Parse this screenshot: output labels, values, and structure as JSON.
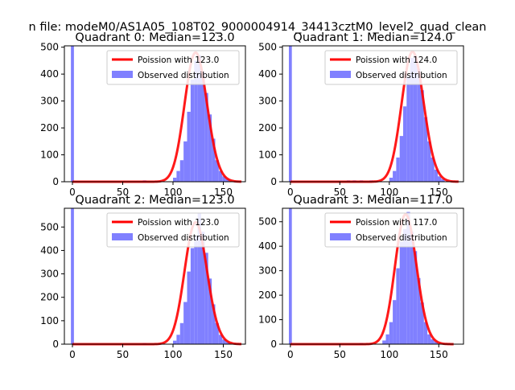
{
  "figure": {
    "suptitle": "n file: modeM0/AS1A05_108T02_9000004914_34413cztM0_level2_quad_clean"
  },
  "colors": {
    "poisson_line": "#ff0000",
    "histogram": "#8080ff",
    "axes": "#000000",
    "background": "#ffffff",
    "legend_border": "#cccccc"
  },
  "chart_data": [
    {
      "type": "bar",
      "title": "Quadrant 0: Median=123.0",
      "median": 123.0,
      "xlim": [
        -8,
        172
      ],
      "ylim": [
        0,
        505
      ],
      "xticks": [
        0,
        50,
        100,
        150
      ],
      "yticks": [
        0,
        100,
        200,
        300,
        400,
        500
      ],
      "legend": {
        "location": "upper right",
        "line_label": "Poission with 123.0",
        "hist_label": "Observed distribution"
      },
      "bin_width": 3.5,
      "zero_spike": {
        "x": 0,
        "value": 505
      },
      "histogram": [
        {
          "x": 70,
          "value": 5
        },
        {
          "x": 100,
          "value": 15
        },
        {
          "x": 103.5,
          "value": 40
        },
        {
          "x": 107,
          "value": 80
        },
        {
          "x": 110.5,
          "value": 150
        },
        {
          "x": 114,
          "value": 260
        },
        {
          "x": 117.5,
          "value": 380
        },
        {
          "x": 121,
          "value": 450
        },
        {
          "x": 124.5,
          "value": 470
        },
        {
          "x": 128,
          "value": 410
        },
        {
          "x": 131.5,
          "value": 330
        },
        {
          "x": 135,
          "value": 250
        },
        {
          "x": 138.5,
          "value": 160
        },
        {
          "x": 142,
          "value": 80
        },
        {
          "x": 145.5,
          "value": 40
        },
        {
          "x": 149,
          "value": 20
        },
        {
          "x": 152.5,
          "value": 10
        }
      ],
      "poisson": {
        "mu": 123.0,
        "x_range": [
          0,
          168
        ],
        "peak": 480
      }
    },
    {
      "type": "bar",
      "title": "Quadrant 1: Median=124.0",
      "median": 124.0,
      "xlim": [
        -8,
        175
      ],
      "ylim": [
        0,
        505
      ],
      "xticks": [
        0,
        50,
        100,
        150
      ],
      "yticks": [
        0,
        100,
        200,
        300,
        400,
        500
      ],
      "legend": {
        "location": "upper right",
        "line_label": "Poission with 124.0",
        "hist_label": "Observed distribution"
      },
      "bin_width": 3.5,
      "zero_spike": {
        "x": 0,
        "value": 505
      },
      "histogram": [
        {
          "x": 57,
          "value": 5
        },
        {
          "x": 63,
          "value": 5
        },
        {
          "x": 70,
          "value": 5
        },
        {
          "x": 80,
          "value": 5
        },
        {
          "x": 100,
          "value": 15
        },
        {
          "x": 103.5,
          "value": 40
        },
        {
          "x": 107,
          "value": 90
        },
        {
          "x": 110.5,
          "value": 170
        },
        {
          "x": 114,
          "value": 280
        },
        {
          "x": 117.5,
          "value": 390
        },
        {
          "x": 121,
          "value": 460
        },
        {
          "x": 124.5,
          "value": 470
        },
        {
          "x": 128,
          "value": 420
        },
        {
          "x": 131.5,
          "value": 340
        },
        {
          "x": 135,
          "value": 240
        },
        {
          "x": 138.5,
          "value": 150
        },
        {
          "x": 142,
          "value": 90
        },
        {
          "x": 145.5,
          "value": 45
        },
        {
          "x": 149,
          "value": 20
        },
        {
          "x": 152.5,
          "value": 10
        }
      ],
      "poisson": {
        "mu": 124.0,
        "x_range": [
          0,
          170
        ],
        "peak": 483
      }
    },
    {
      "type": "bar",
      "title": "Quadrant 2: Median=123.0",
      "median": 123.0,
      "xlim": [
        -8,
        172
      ],
      "ylim": [
        0,
        580
      ],
      "xticks": [
        0,
        50,
        100,
        150
      ],
      "yticks": [
        0,
        100,
        200,
        300,
        400,
        500
      ],
      "legend": {
        "location": "upper right",
        "line_label": "Poission with 123.0",
        "hist_label": "Observed distribution"
      },
      "bin_width": 3.5,
      "zero_spike": {
        "x": 0,
        "value": 580
      },
      "histogram": [
        {
          "x": 70,
          "value": 5
        },
        {
          "x": 100,
          "value": 15
        },
        {
          "x": 103.5,
          "value": 40
        },
        {
          "x": 107,
          "value": 90
        },
        {
          "x": 110.5,
          "value": 180
        },
        {
          "x": 114,
          "value": 310
        },
        {
          "x": 117.5,
          "value": 410
        },
        {
          "x": 121,
          "value": 460
        },
        {
          "x": 124.5,
          "value": 560
        },
        {
          "x": 128,
          "value": 480
        },
        {
          "x": 131.5,
          "value": 390
        },
        {
          "x": 135,
          "value": 280
        },
        {
          "x": 138.5,
          "value": 170
        },
        {
          "x": 142,
          "value": 90
        },
        {
          "x": 145.5,
          "value": 40
        },
        {
          "x": 149,
          "value": 20
        },
        {
          "x": 152.5,
          "value": 10
        }
      ],
      "poisson": {
        "mu": 123.0,
        "x_range": [
          0,
          168
        ],
        "peak": 520
      }
    },
    {
      "type": "bar",
      "title": "Quadrant 3: Median=117.0",
      "median": 117.0,
      "xlim": [
        -8,
        175
      ],
      "ylim": [
        0,
        555
      ],
      "xticks": [
        0,
        50,
        100,
        150
      ],
      "yticks": [
        0,
        100,
        200,
        300,
        400,
        500
      ],
      "legend": {
        "location": "upper right",
        "line_label": "Poission with 117.0",
        "hist_label": "Observed distribution"
      },
      "bin_width": 3.5,
      "zero_spike": {
        "x": 0,
        "value": 555
      },
      "histogram": [
        {
          "x": 70,
          "value": 5
        },
        {
          "x": 93,
          "value": 15
        },
        {
          "x": 96.5,
          "value": 40
        },
        {
          "x": 100,
          "value": 90
        },
        {
          "x": 103.5,
          "value": 180
        },
        {
          "x": 107,
          "value": 310
        },
        {
          "x": 110.5,
          "value": 420
        },
        {
          "x": 114,
          "value": 470
        },
        {
          "x": 117.5,
          "value": 540
        },
        {
          "x": 121,
          "value": 460
        },
        {
          "x": 124.5,
          "value": 380
        },
        {
          "x": 128,
          "value": 270
        },
        {
          "x": 131.5,
          "value": 170
        },
        {
          "x": 135,
          "value": 90
        },
        {
          "x": 138.5,
          "value": 40
        },
        {
          "x": 142,
          "value": 20
        },
        {
          "x": 145.5,
          "value": 10
        }
      ],
      "poisson": {
        "mu": 117.0,
        "x_range": [
          0,
          165
        ],
        "peak": 530
      }
    }
  ]
}
